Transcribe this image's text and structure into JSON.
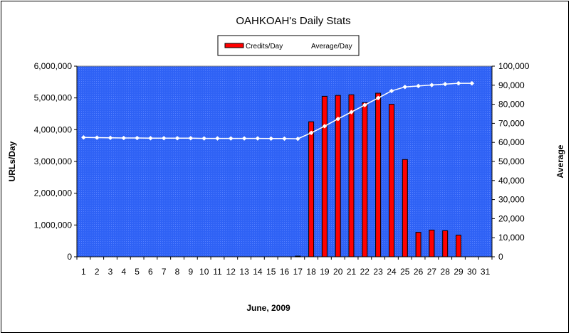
{
  "chart_data": {
    "type": "bar",
    "title": "OAHKOAH's Daily Stats",
    "xlabel": "June, 2009",
    "ylabel": "URLs/Day",
    "y2label": "Average",
    "categories": [
      "1",
      "2",
      "3",
      "4",
      "5",
      "6",
      "7",
      "8",
      "9",
      "10",
      "11",
      "12",
      "13",
      "14",
      "15",
      "16",
      "17",
      "18",
      "19",
      "20",
      "21",
      "22",
      "23",
      "24",
      "25",
      "26",
      "27",
      "28",
      "29",
      "30",
      "31"
    ],
    "ylim": [
      0,
      6000000
    ],
    "y2lim": [
      0,
      100000
    ],
    "yticks": [
      "0",
      "1,000,000",
      "2,000,000",
      "3,000,000",
      "4,000,000",
      "5,000,000",
      "6,000,000"
    ],
    "y2ticks": [
      "0",
      "10,000",
      "20,000",
      "30,000",
      "40,000",
      "50,000",
      "60,000",
      "70,000",
      "80,000",
      "90,000",
      "100,000"
    ],
    "series": [
      {
        "name": "Credits/Day",
        "type": "bar",
        "axis": "left",
        "color": "#ff0000",
        "values": [
          0,
          0,
          0,
          0,
          0,
          0,
          0,
          0,
          0,
          0,
          0,
          0,
          0,
          0,
          0,
          0,
          20000,
          4250000,
          5050000,
          5080000,
          5100000,
          4850000,
          5150000,
          4800000,
          3060000,
          770000,
          840000,
          820000,
          680000,
          0,
          0
        ]
      },
      {
        "name": "Average/Day",
        "type": "line",
        "axis": "right",
        "color": "#ffffff",
        "values": [
          62600,
          62500,
          62400,
          62300,
          62300,
          62200,
          62200,
          62200,
          62200,
          62100,
          62100,
          62100,
          62100,
          62100,
          62000,
          62000,
          61900,
          65000,
          68500,
          72300,
          75900,
          79600,
          83300,
          87000,
          89100,
          89600,
          90100,
          90600,
          91000,
          91000,
          null
        ]
      }
    ],
    "legend_position": "top-center",
    "plot_background": "#3366ff",
    "grid": false
  }
}
